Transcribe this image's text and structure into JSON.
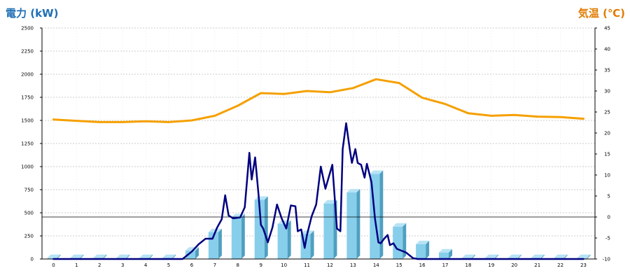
{
  "chart_data": {
    "type": "bar+line",
    "left_axis": {
      "title": "電力 (kW)",
      "ticks": [
        "2500",
        "2250",
        "2000",
        "1750",
        "1500",
        "1250",
        "1000",
        "750",
        "500",
        "250",
        "0"
      ],
      "ylim": [
        0,
        2500
      ],
      "color": "#1f6fb5"
    },
    "right_axis": {
      "title": "気温 (℃)",
      "ticks": [
        "45",
        "40",
        "35",
        "30",
        "25",
        "20",
        "15",
        "10",
        "5",
        "0",
        "-5",
        "-10"
      ],
      "ylim": [
        -10,
        45
      ],
      "color": "#e07b00"
    },
    "categories": [
      "0",
      "1",
      "2",
      "3",
      "4",
      "5",
      "6",
      "7",
      "8",
      "9",
      "10",
      "11",
      "12",
      "13",
      "14",
      "15",
      "16",
      "17",
      "18",
      "19",
      "20",
      "21",
      "22",
      "23"
    ],
    "grid": true,
    "zero_line_temperature": 0,
    "series": [
      {
        "kind": "bar",
        "axis": "left",
        "color": "#87ceeb",
        "values": [
          10,
          10,
          10,
          10,
          10,
          10,
          90,
          290,
          450,
          640,
          380,
          270,
          600,
          720,
          920,
          350,
          160,
          70,
          10,
          10,
          10,
          10,
          10,
          10
        ]
      },
      {
        "kind": "line",
        "axis": "left",
        "color": "#000080",
        "x": [
          0,
          1,
          2,
          3,
          4,
          5,
          5.6,
          6,
          6.3,
          6.6,
          6.9,
          7.1,
          7.3,
          7.45,
          7.6,
          7.8,
          8.1,
          8.3,
          8.5,
          8.6,
          8.75,
          8.9,
          9.0,
          9.1,
          9.3,
          9.5,
          9.7,
          9.9,
          10.1,
          10.3,
          10.5,
          10.6,
          10.75,
          10.9,
          11.0,
          11.2,
          11.4,
          11.6,
          11.8,
          12.1,
          12.3,
          12.45,
          12.55,
          12.7,
          12.85,
          12.95,
          13.1,
          13.2,
          13.35,
          13.5,
          13.6,
          13.8,
          13.95,
          14.1,
          14.2,
          14.35,
          14.5,
          14.6,
          14.75,
          14.9,
          15.1,
          15.3,
          15.6,
          15.8,
          16.0,
          16.2,
          16.4,
          16.7,
          17.0,
          17.2,
          17.3,
          18,
          19,
          20,
          21,
          22,
          23
        ],
        "values": [
          0,
          0,
          0,
          0,
          0,
          0,
          0,
          80,
          160,
          220,
          220,
          340,
          430,
          690,
          470,
          440,
          450,
          560,
          1150,
          860,
          1100,
          690,
          370,
          330,
          180,
          340,
          590,
          440,
          330,
          580,
          570,
          300,
          320,
          120,
          260,
          460,
          590,
          1000,
          760,
          1020,
          330,
          300,
          1190,
          1470,
          1200,
          1040,
          1190,
          1040,
          1020,
          880,
          1030,
          830,
          440,
          180,
          170,
          220,
          260,
          150,
          170,
          110,
          90,
          70,
          10,
          0,
          0,
          0,
          0,
          0,
          0,
          0,
          0,
          0,
          0,
          0,
          0,
          0,
          0
        ]
      },
      {
        "kind": "line",
        "axis": "right",
        "color": "#f5a000",
        "values": [
          23.2,
          22.9,
          22.6,
          22.6,
          22.8,
          22.6,
          23.0,
          24.1,
          26.5,
          29.5,
          29.3,
          30.0,
          29.7,
          30.7,
          32.8,
          31.9,
          28.4,
          26.9,
          24.7,
          24.1,
          24.3,
          23.9,
          23.8,
          23.4
        ]
      }
    ]
  }
}
